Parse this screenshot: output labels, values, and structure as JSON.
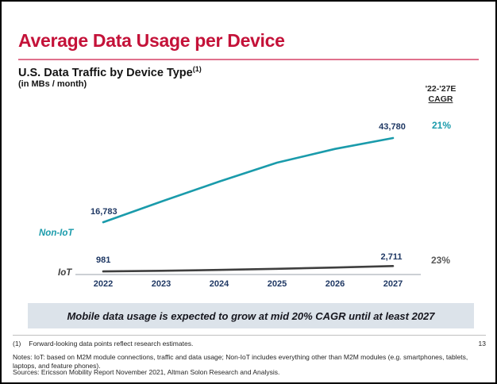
{
  "header": {
    "title": "Average Data Usage per Device",
    "subtitle": "U.S. Data Traffic by Device Type",
    "subtitle_note_ref": "(1)",
    "units": "(in MBs / month)"
  },
  "cagr_column": {
    "period": "'22-'27E",
    "label": "CAGR"
  },
  "chart_data": {
    "type": "line",
    "title": "U.S. Data Traffic by Device Type",
    "units": "MBs / month",
    "x": [
      "2022",
      "2023",
      "2024",
      "2025",
      "2026",
      "2027"
    ],
    "series": [
      {
        "name": "Non-IoT",
        "color": "#1A9BAB",
        "values": [
          16783,
          23400,
          29800,
          35900,
          40300,
          43780
        ],
        "first_label": "16,783",
        "last_label": "43,780",
        "cagr": "21%"
      },
      {
        "name": "IoT",
        "color": "#3F3F3F",
        "values": [
          981,
          1207,
          1484,
          1825,
          2245,
          2711
        ],
        "first_label": "981",
        "last_label": "2,711",
        "cagr": "23%"
      }
    ],
    "labeled_years": [
      "2022",
      "2027"
    ],
    "ylim": [
      0,
      45000
    ],
    "grid": false,
    "legend_position": "left-of-lines",
    "cagr_header": "'22-'27E CAGR"
  },
  "banner": {
    "text": "Mobile data usage is expected to grow at mid 20% CAGR until at least 2027"
  },
  "footer": {
    "footnote_marker": "(1)",
    "footnote_text": "Forward-looking data points reflect research estimates.",
    "page_number": "13",
    "notes": "Notes: IoT: based on M2M module connections, traffic and data usage; Non-IoT includes everything other than M2M modules (e.g. smartphones, tablets, laptops, and feature phones).",
    "sources": "Sources: Ericsson Mobility Report November 2021, Altman Solon Research and Analysis."
  }
}
